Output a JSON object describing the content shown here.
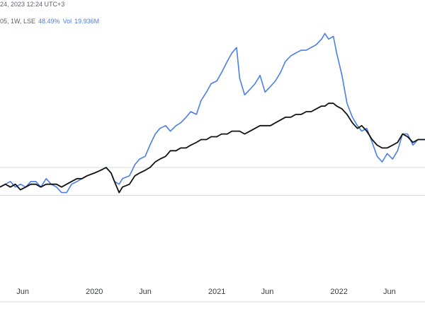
{
  "header": {
    "line1": "24, 2023 12:24 UTC+3",
    "line2_prefix": "05, 1W, LSE",
    "line2_pct": "48.49%",
    "line2_vol_label": "Vol",
    "line2_vol_value": "19.936M"
  },
  "chart_data": {
    "type": "line",
    "title": "",
    "xlabel": "",
    "ylabel": "",
    "x_range": [
      "2019-03-25",
      "2022-09-15"
    ],
    "y_range": [
      -40,
      60
    ],
    "x_tick_labels": [
      {
        "label": "Jun",
        "date": "2019-06-01"
      },
      {
        "label": "2020",
        "date": "2020-01-01"
      },
      {
        "label": "Jun",
        "date": "2020-06-01"
      },
      {
        "label": "2021",
        "date": "2021-01-01"
      },
      {
        "label": "Jun",
        "date": "2021-06-01"
      },
      {
        "label": "2022",
        "date": "2022-01-01"
      },
      {
        "label": "Jun",
        "date": "2022-06-01"
      }
    ],
    "horizontal_gridlines": [
      0,
      -10
    ],
    "grid": "horizontal",
    "series": [
      {
        "color": "#4a7ee8",
        "points": [
          [
            "2019-03-25",
            -7
          ],
          [
            "2019-04-10",
            -6
          ],
          [
            "2019-04-25",
            -5
          ],
          [
            "2019-05-10",
            -7
          ],
          [
            "2019-05-25",
            -6
          ],
          [
            "2019-06-10",
            -7
          ],
          [
            "2019-06-25",
            -5
          ],
          [
            "2019-07-10",
            -5
          ],
          [
            "2019-07-25",
            -7
          ],
          [
            "2019-08-10",
            -4
          ],
          [
            "2019-08-25",
            -6
          ],
          [
            "2019-09-10",
            -7
          ],
          [
            "2019-09-25",
            -9
          ],
          [
            "2019-10-10",
            -9
          ],
          [
            "2019-10-25",
            -6
          ],
          [
            "2019-11-10",
            -5
          ],
          [
            "2019-11-25",
            -4
          ],
          [
            "2019-12-10",
            -3
          ],
          [
            "2020-01-01",
            -2
          ],
          [
            "2020-01-20",
            -1
          ],
          [
            "2020-02-05",
            0
          ],
          [
            "2020-02-20",
            -2
          ],
          [
            "2020-03-01",
            -5
          ],
          [
            "2020-03-15",
            -6
          ],
          [
            "2020-03-25",
            -4
          ],
          [
            "2020-04-15",
            -3
          ],
          [
            "2020-05-01",
            1
          ],
          [
            "2020-05-15",
            3
          ],
          [
            "2020-06-01",
            4
          ],
          [
            "2020-06-15",
            8
          ],
          [
            "2020-07-01",
            12
          ],
          [
            "2020-07-15",
            14
          ],
          [
            "2020-08-01",
            15
          ],
          [
            "2020-08-15",
            13
          ],
          [
            "2020-09-01",
            15
          ],
          [
            "2020-09-15",
            16
          ],
          [
            "2020-10-01",
            18
          ],
          [
            "2020-10-15",
            20
          ],
          [
            "2020-11-01",
            19
          ],
          [
            "2020-11-15",
            24
          ],
          [
            "2020-12-01",
            27
          ],
          [
            "2020-12-15",
            30
          ],
          [
            "2021-01-01",
            31
          ],
          [
            "2021-01-15",
            34
          ],
          [
            "2021-02-01",
            38
          ],
          [
            "2021-02-15",
            41
          ],
          [
            "2021-03-01",
            43
          ],
          [
            "2021-03-10",
            32
          ],
          [
            "2021-03-25",
            26
          ],
          [
            "2021-04-10",
            28
          ],
          [
            "2021-04-25",
            30
          ],
          [
            "2021-05-10",
            33
          ],
          [
            "2021-05-25",
            27
          ],
          [
            "2021-06-10",
            29
          ],
          [
            "2021-06-25",
            31
          ],
          [
            "2021-07-10",
            34
          ],
          [
            "2021-07-25",
            38
          ],
          [
            "2021-08-10",
            40
          ],
          [
            "2021-08-25",
            41
          ],
          [
            "2021-09-10",
            42
          ],
          [
            "2021-09-25",
            42
          ],
          [
            "2021-10-10",
            43
          ],
          [
            "2021-10-25",
            44
          ],
          [
            "2021-11-10",
            46
          ],
          [
            "2021-11-20",
            48
          ],
          [
            "2021-12-01",
            46
          ],
          [
            "2021-12-15",
            47
          ],
          [
            "2021-12-25",
            41
          ],
          [
            "2022-01-10",
            33
          ],
          [
            "2022-01-25",
            23
          ],
          [
            "2022-02-10",
            18
          ],
          [
            "2022-02-25",
            15
          ],
          [
            "2022-03-10",
            13
          ],
          [
            "2022-03-25",
            14
          ],
          [
            "2022-04-10",
            9
          ],
          [
            "2022-04-25",
            4
          ],
          [
            "2022-05-10",
            2
          ],
          [
            "2022-05-25",
            5
          ],
          [
            "2022-06-10",
            3
          ],
          [
            "2022-06-25",
            6
          ],
          [
            "2022-07-10",
            12
          ],
          [
            "2022-07-25",
            12
          ],
          [
            "2022-08-10",
            8
          ],
          [
            "2022-08-25",
            10
          ],
          [
            "2022-09-15",
            10
          ]
        ]
      },
      {
        "color": "#111111",
        "points": [
          [
            "2019-03-25",
            -7
          ],
          [
            "2019-04-10",
            -6
          ],
          [
            "2019-04-25",
            -7
          ],
          [
            "2019-05-10",
            -6
          ],
          [
            "2019-05-25",
            -8
          ],
          [
            "2019-06-10",
            -7
          ],
          [
            "2019-06-25",
            -6
          ],
          [
            "2019-07-10",
            -6
          ],
          [
            "2019-07-25",
            -7
          ],
          [
            "2019-08-10",
            -6
          ],
          [
            "2019-08-25",
            -6
          ],
          [
            "2019-09-10",
            -6
          ],
          [
            "2019-09-25",
            -7
          ],
          [
            "2019-10-10",
            -6
          ],
          [
            "2019-10-25",
            -5
          ],
          [
            "2019-11-10",
            -4
          ],
          [
            "2019-11-25",
            -4
          ],
          [
            "2019-12-10",
            -3
          ],
          [
            "2020-01-01",
            -2
          ],
          [
            "2020-01-20",
            -1
          ],
          [
            "2020-02-05",
            0
          ],
          [
            "2020-02-20",
            -2
          ],
          [
            "2020-03-01",
            -5
          ],
          [
            "2020-03-15",
            -9
          ],
          [
            "2020-03-25",
            -7
          ],
          [
            "2020-04-15",
            -6
          ],
          [
            "2020-05-01",
            -3
          ],
          [
            "2020-05-15",
            -2
          ],
          [
            "2020-06-01",
            -1
          ],
          [
            "2020-06-15",
            0
          ],
          [
            "2020-07-01",
            2
          ],
          [
            "2020-07-15",
            3
          ],
          [
            "2020-08-01",
            4
          ],
          [
            "2020-08-15",
            6
          ],
          [
            "2020-09-01",
            6
          ],
          [
            "2020-09-15",
            7
          ],
          [
            "2020-10-01",
            7
          ],
          [
            "2020-10-15",
            8
          ],
          [
            "2020-11-01",
            9
          ],
          [
            "2020-11-15",
            10
          ],
          [
            "2020-12-01",
            10
          ],
          [
            "2020-12-15",
            11
          ],
          [
            "2021-01-01",
            11
          ],
          [
            "2021-01-15",
            12
          ],
          [
            "2021-02-01",
            12
          ],
          [
            "2021-02-15",
            13
          ],
          [
            "2021-03-01",
            13
          ],
          [
            "2021-03-10",
            13
          ],
          [
            "2021-03-25",
            12
          ],
          [
            "2021-04-10",
            13
          ],
          [
            "2021-04-25",
            14
          ],
          [
            "2021-05-10",
            15
          ],
          [
            "2021-05-25",
            15
          ],
          [
            "2021-06-10",
            15
          ],
          [
            "2021-06-25",
            16
          ],
          [
            "2021-07-10",
            17
          ],
          [
            "2021-07-25",
            18
          ],
          [
            "2021-08-10",
            18
          ],
          [
            "2021-08-25",
            19
          ],
          [
            "2021-09-10",
            19
          ],
          [
            "2021-09-25",
            20
          ],
          [
            "2021-10-10",
            20
          ],
          [
            "2021-10-25",
            21
          ],
          [
            "2021-11-10",
            22
          ],
          [
            "2021-11-20",
            22
          ],
          [
            "2021-12-01",
            23
          ],
          [
            "2021-12-15",
            23
          ],
          [
            "2021-12-25",
            22
          ],
          [
            "2022-01-10",
            21
          ],
          [
            "2022-01-25",
            19
          ],
          [
            "2022-02-10",
            16
          ],
          [
            "2022-02-25",
            14
          ],
          [
            "2022-03-10",
            15
          ],
          [
            "2022-03-25",
            13
          ],
          [
            "2022-04-10",
            10
          ],
          [
            "2022-04-25",
            8
          ],
          [
            "2022-05-10",
            7
          ],
          [
            "2022-05-25",
            7
          ],
          [
            "2022-06-10",
            8
          ],
          [
            "2022-06-25",
            9
          ],
          [
            "2022-07-10",
            12
          ],
          [
            "2022-07-25",
            11
          ],
          [
            "2022-08-10",
            9
          ],
          [
            "2022-08-25",
            10
          ],
          [
            "2022-09-15",
            10
          ]
        ]
      }
    ]
  }
}
